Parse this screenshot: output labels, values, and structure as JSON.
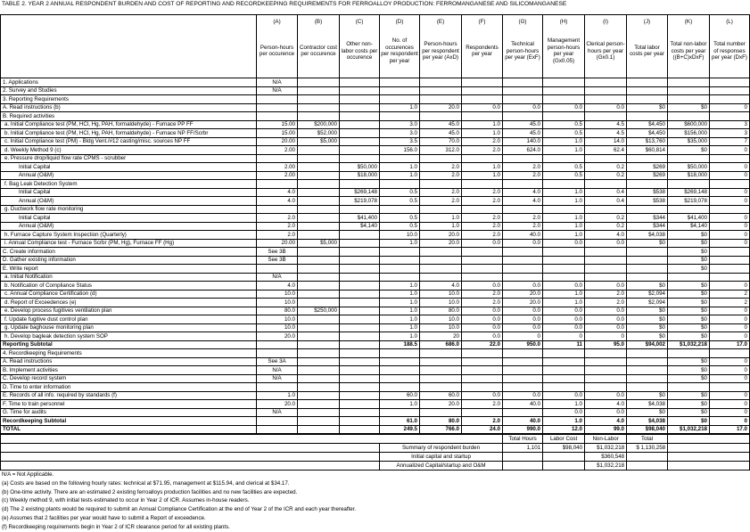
{
  "title": "TABLE 2.  YEAR 2 ANNUAL RESPONDENT BURDEN AND COST OF REPORTING AND RECORDKEEPING REQUIREMENTS FOR FERROALLOY PRODUCTION: FERROMANGANESE AND SILICOMANGANESE",
  "table": {
    "columns": [
      {
        "letter": "(A)",
        "label": "Person-hours per occurence"
      },
      {
        "letter": "(B)",
        "label": "Contractor cost per occurence"
      },
      {
        "letter": "(C)",
        "label": "Other non-labor costs per occurence"
      },
      {
        "letter": "(D)",
        "label": "No. of occurences per respondent per year"
      },
      {
        "letter": "(E)",
        "label": "Person-hours per respondent per year (AxD)"
      },
      {
        "letter": "(F)",
        "label": "Respondents per year"
      },
      {
        "letter": "(G)",
        "label": "Technical person-hours per year (ExF)"
      },
      {
        "letter": "(H)",
        "label": "Management person-hours per year (Gx0.05)"
      },
      {
        "letter": "(I)",
        "label": "Clerical person-hours per year (Gx0.1)"
      },
      {
        "letter": "(J)",
        "label": "Total labor costs per year"
      },
      {
        "letter": "(K)",
        "label": "Total non-labor costs per year ((B+C)xDxF)"
      },
      {
        "letter": "(L)",
        "label": "Total number of responses per year (DxF)"
      }
    ],
    "rows": [
      [
        "1. Applications",
        "N/A",
        null,
        null,
        null,
        null,
        null,
        null,
        null,
        null,
        null,
        null,
        null
      ],
      [
        "2. Survey and Studies",
        "N/A",
        null,
        null,
        null,
        null,
        null,
        null,
        null,
        null,
        null,
        null,
        null
      ],
      [
        "3. Reporting Requirements",
        null,
        null,
        null,
        null,
        null,
        null,
        null,
        null,
        null,
        null,
        null,
        null
      ],
      [
        "A. Read instructions (b)",
        null,
        null,
        null,
        "1.0",
        "20.0",
        "0.0",
        "0.0",
        "0.0",
        "0.0",
        "$0",
        "$0",
        "0"
      ],
      [
        "B. Required activities",
        null,
        null,
        null,
        null,
        null,
        null,
        null,
        null,
        null,
        null,
        null,
        null
      ],
      [
        "a. Initial Compliance test (PM, HCl, Hg, PAH, formaldehyde) - Furnace PP FF",
        "15.00",
        "$200,000",
        null,
        "3.0",
        "45.0",
        "1.0",
        "45.0",
        "0.5",
        "4.5",
        "$4,450",
        "$600,000",
        "3"
      ],
      [
        "b. Initial Compliance test (PM, HCl, Hg, PAH, formaldehyde) - Furnace NP FF/Scrbr",
        "15.00",
        "$52,000",
        null,
        "3.0",
        "45.0",
        "1.0",
        "45.0",
        "0.5",
        "4.5",
        "$4,450",
        "$156,000",
        "3"
      ],
      [
        "c. Initial Compliance test (PM) - Bldg Vent./#12 casting/misc. sources NP FF",
        "20.00",
        "$5,000",
        null,
        "3.5",
        "70.0",
        "2.0",
        "140.0",
        "1.0",
        "14.0",
        "$13,760",
        "$35,000",
        "7"
      ],
      [
        "d. Weekly Method 9 (c)",
        "2.00",
        null,
        null,
        "156.0",
        "312.0",
        "2.0",
        "624.0",
        "1.0",
        "62.4",
        "$60,814",
        "$0",
        "0"
      ],
      [
        "e. Pressure drop/liquid flow rate CPMS - scrubber",
        null,
        null,
        null,
        null,
        null,
        null,
        null,
        null,
        null,
        null,
        null,
        null
      ],
      [
        "Initial Capital",
        "2.00",
        null,
        "$50,000",
        "1.0",
        "2.0",
        "1.0",
        "2.0",
        "0.5",
        "0.2",
        "$269",
        "$50,000",
        "0"
      ],
      [
        "Annual (O&M)",
        "2.00",
        null,
        "$18,000",
        "1.0",
        "2.0",
        "1.0",
        "2.0",
        "0.5",
        "0.2",
        "$269",
        "$18,000",
        "0"
      ],
      [
        "f. Bag Leak Detection System",
        null,
        null,
        null,
        null,
        null,
        null,
        null,
        null,
        null,
        null,
        null,
        null
      ],
      [
        "Initial Capital",
        "4.0",
        null,
        "$269,148",
        "0.5",
        "2.0",
        "2.0",
        "4.0",
        "1.0",
        "0.4",
        "$538",
        "$269,148",
        "0"
      ],
      [
        "Annual (O&M)",
        "4.0",
        null,
        "$219,078",
        "0.5",
        "2.0",
        "2.0",
        "4.0",
        "1.0",
        "0.4",
        "$538",
        "$219,078",
        "0"
      ],
      [
        "g. Ductwork flow rate monitoring",
        null,
        null,
        null,
        null,
        null,
        null,
        null,
        null,
        null,
        null,
        null,
        null
      ],
      [
        "Initial Capital",
        "2.0",
        null,
        "$41,400",
        "0.5",
        "1.0",
        "2.0",
        "2.0",
        "1.0",
        "0.2",
        "$344",
        "$41,400",
        "0"
      ],
      [
        "Annual (O&M)",
        "2.0",
        null,
        "$4,140",
        "0.5",
        "1.0",
        "2.0",
        "2.0",
        "1.0",
        "0.2",
        "$344",
        "$4,140",
        "0"
      ],
      [
        "h. Furnace Capture System Inspection (Quarterly)",
        "2.0",
        null,
        null,
        "10.0",
        "20.0",
        "2.0",
        "40.0",
        "1.0",
        "4.0",
        "$4,038",
        "$0",
        "0"
      ],
      [
        "i. Annual Compliance test - Furnace Scrbr (PM, Hg), Furnace FF (Hg)",
        "20.00",
        "$5,000",
        null,
        "1.0",
        "20.0",
        "0.0",
        "0.0",
        "0.0",
        "0.0",
        "$0",
        "$0",
        "0"
      ],
      [
        "C. Create information",
        "See 3B",
        null,
        null,
        null,
        null,
        null,
        null,
        null,
        null,
        null,
        "$0",
        null
      ],
      [
        "D. Gather existing information",
        "See 3B",
        null,
        null,
        null,
        null,
        null,
        null,
        null,
        null,
        null,
        "$0",
        null
      ],
      [
        "E. Write report",
        null,
        null,
        null,
        null,
        null,
        null,
        null,
        null,
        null,
        null,
        "$0",
        null
      ],
      [
        "a. Initial Notification",
        "N/A",
        null,
        null,
        null,
        null,
        null,
        null,
        null,
        null,
        null,
        null,
        null
      ],
      [
        "b. Notification of Compliance Status",
        "4.0",
        null,
        null,
        "1.0",
        "4.0",
        "0.0",
        "0.0",
        "0.0",
        "0.0",
        "$0",
        "$0",
        "0"
      ],
      [
        "c. Annual Compliance Certification (d)",
        "10.0",
        null,
        null,
        "1.0",
        "10.0",
        "2.0",
        "20.0",
        "1.0",
        "2.0",
        "$2,094",
        "$0",
        "2"
      ],
      [
        "d. Report of Exceedences (e)",
        "10.0",
        null,
        null,
        "1.0",
        "10.0",
        "2.0",
        "20.0",
        "1.0",
        "2.0",
        "$2,094",
        "$0",
        "2"
      ],
      [
        "e. Develop process fugitives ventilation plan",
        "80.0",
        "$250,000",
        null,
        "1.0",
        "80.0",
        "0.0",
        "0.0",
        "0.0",
        "0.0",
        "$0",
        "$0",
        "0"
      ],
      [
        "f. Update fugitive dust control plan",
        "10.0",
        null,
        null,
        "1.0",
        "10.0",
        "0.0",
        "0.0",
        "0.0",
        "0.0",
        "$0",
        "$0",
        "0"
      ],
      [
        "g. Update baghouse monitoring plan",
        "10.0",
        null,
        null,
        "1.0",
        "10.0",
        "0.0",
        "0.0",
        "0.0",
        "0.0",
        "$0",
        "$0",
        "0"
      ],
      [
        "h. Develop bagleak detection system SOP",
        "20.0",
        null,
        null,
        "1.0",
        "20",
        "0.0",
        "0",
        "0",
        "0",
        "$0",
        "$0",
        "0"
      ],
      [
        "Reporting Subtotal",
        null,
        null,
        null,
        "188.5",
        "686.0",
        "22.0",
        "950.0",
        "11",
        "95.0",
        "$94,002",
        "$1,032,218",
        "17.0"
      ],
      [
        "4. Recordkeeping Requirements",
        null,
        null,
        null,
        null,
        null,
        null,
        null,
        null,
        null,
        null,
        null,
        null
      ],
      [
        "A. Read instructions",
        "See 3A",
        null,
        null,
        null,
        null,
        null,
        null,
        null,
        null,
        null,
        "$0",
        "0"
      ],
      [
        "B. Implement activities",
        "N/A",
        null,
        null,
        null,
        null,
        null,
        null,
        null,
        null,
        null,
        "$0",
        "0"
      ],
      [
        "C. Develop record system",
        "N/A",
        null,
        null,
        null,
        null,
        null,
        null,
        null,
        null,
        null,
        "$0",
        "0"
      ],
      [
        "D. Time to enter information",
        null,
        null,
        null,
        null,
        null,
        null,
        null,
        null,
        null,
        null,
        null,
        null
      ],
      [
        "E. Records of all info. required by standards (f)",
        "1.0",
        null,
        null,
        "60.0",
        "60.0",
        "0.0",
        "0.0",
        "0.0",
        "0.0",
        "$0",
        "$0",
        "0"
      ],
      [
        "F. Time to train personnel",
        "20.0",
        null,
        null,
        "1.0",
        "20.0",
        "2.0",
        "40.0",
        "1.0",
        "4.0",
        "$4,038",
        "$0",
        "0"
      ],
      [
        "G. Time for audits",
        "N/A",
        null,
        null,
        null,
        null,
        null,
        null,
        "0.0",
        "0.0",
        "$0",
        "$0",
        "0"
      ],
      [
        "Recordkeeping Subtotal",
        null,
        null,
        null,
        "61.0",
        "80.0",
        "2.0",
        "40.0",
        "1.0",
        "4.0",
        "$4,038",
        "$0",
        "0"
      ],
      [
        "TOTAL",
        null,
        null,
        null,
        "249.5",
        "766.0",
        "24.0",
        "990.0",
        "12.0",
        "99.0",
        "$98,040",
        "$1,032,218",
        "17.0"
      ]
    ]
  },
  "summary": {
    "header": [
      "Total Hours",
      "Labor Cost",
      "Non-Labor",
      "Total"
    ],
    "rows": [
      {
        "label": "Summary of respondent burden",
        "values": [
          "1,101",
          "$98,040",
          "$1,032,218",
          "$ 1,130,258"
        ]
      },
      {
        "label": "Initial capital and startup",
        "values": [
          null,
          null,
          "$360,548",
          null
        ]
      },
      {
        "label": "Annualized Capital/startup and O&M",
        "values": [
          null,
          null,
          "$1,032,218",
          null
        ]
      }
    ]
  },
  "footnotes": [
    "N/A = Not Applicable.",
    "(a) Costs are based on the following hourly rates:  technical at $71.95, management at $115.94, and clerical at $34.17.",
    "(b) One-time activity.  There are an estimated 2 existing ferroalloys production facilities and no new facilities are expected.",
    "(c) Weekly method 9, with initial tests estimated to occur in Year 2 of ICR.  Assumes in-house readers.",
    "(d) The 2 existing plants would be required to submit an Annual Compliance Certification at the end of Year 2 of the ICR and each year thereafter.",
    "(e)  Assumes that 2 facilities per year would have to submit a Report of exceedence.",
    "(f)  Recordkeeping requirements begin in Year 2 of ICR clearance period for all existing plants."
  ]
}
